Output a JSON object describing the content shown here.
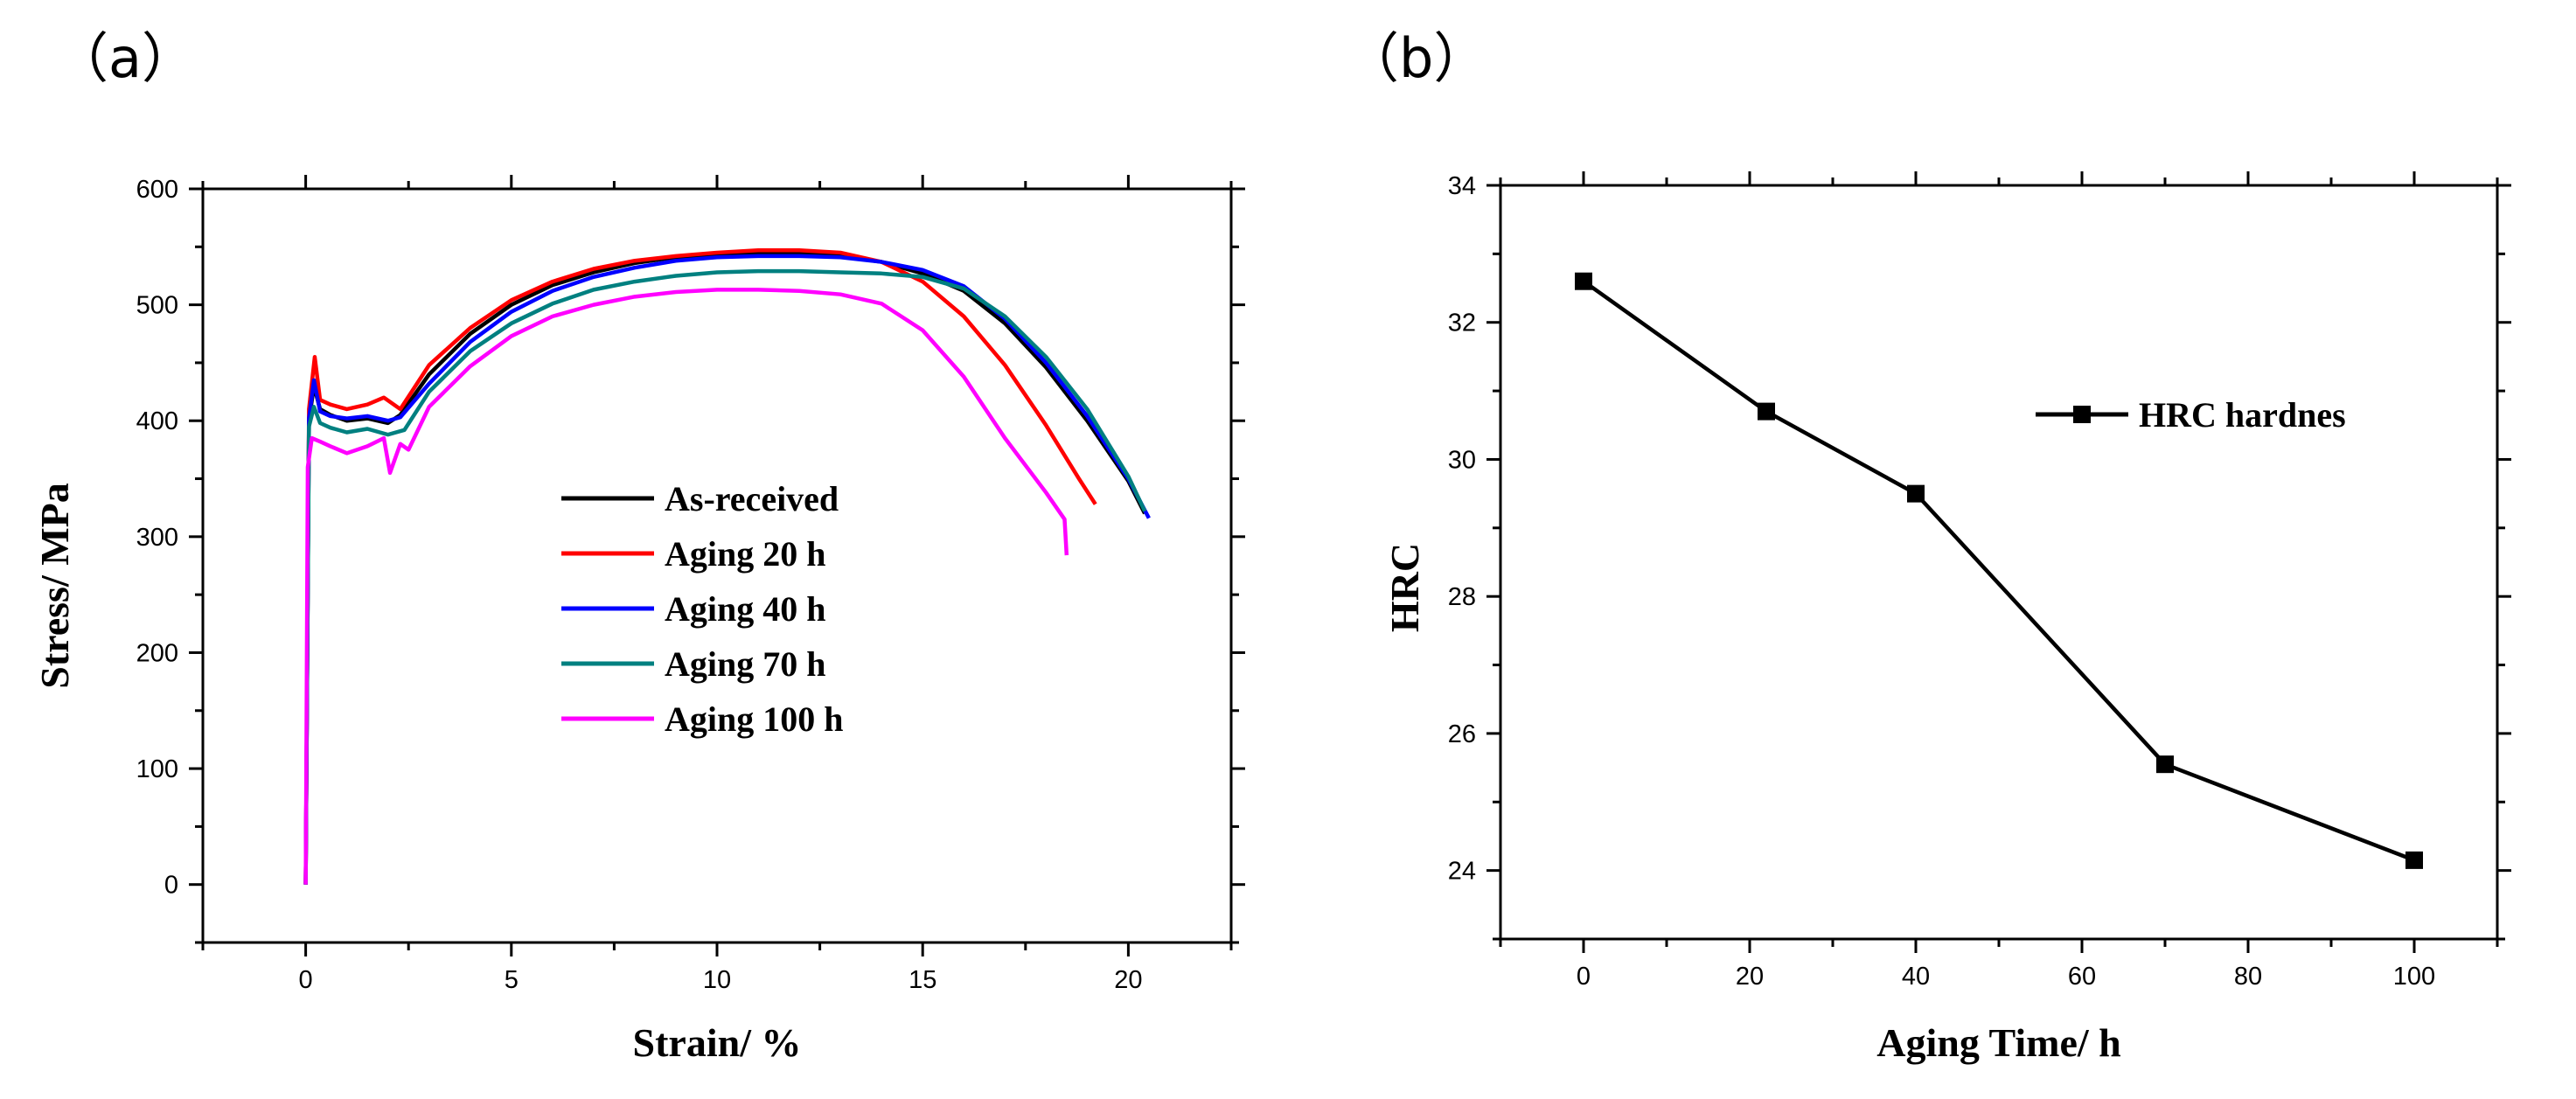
{
  "chart_data": [
    {
      "panel_label": "（a）",
      "type": "line",
      "xlabel": "Strain/ %",
      "ylabel": "Stress/ MPa",
      "xlim": [
        -2.5,
        22.5
      ],
      "ylim": [
        -50,
        600
      ],
      "xticks": [
        0,
        5,
        10,
        15,
        20
      ],
      "yticks": [
        0,
        100,
        200,
        300,
        400,
        500,
        600
      ],
      "legend": "center-right",
      "series": [
        {
          "name": "As-received",
          "color": "#000000",
          "x": [
            0,
            0.08,
            0.2,
            0.35,
            0.6,
            1.0,
            1.5,
            2.0,
            2.3,
            3,
            4,
            5,
            6,
            7,
            8,
            9,
            10,
            11,
            12,
            13,
            14,
            15,
            16,
            17,
            18,
            19,
            20,
            20.4
          ],
          "y": [
            0,
            400,
            430,
            410,
            405,
            400,
            402,
            398,
            405,
            440,
            475,
            500,
            517,
            528,
            536,
            541,
            543,
            544,
            544,
            542,
            537,
            527,
            512,
            484,
            446,
            400,
            348,
            320
          ]
        },
        {
          "name": "Aging 20 h",
          "color": "#ff0000",
          "x": [
            0,
            0.08,
            0.22,
            0.35,
            0.6,
            1.0,
            1.5,
            1.9,
            2.3,
            3,
            4,
            5,
            6,
            7,
            8,
            9,
            10,
            11,
            12,
            13,
            14,
            15,
            16,
            17,
            18,
            18.8,
            19.2
          ],
          "y": [
            0,
            410,
            455,
            418,
            414,
            410,
            414,
            420,
            410,
            448,
            480,
            504,
            520,
            531,
            538,
            542,
            545,
            547,
            547,
            545,
            537,
            520,
            490,
            448,
            396,
            350,
            328
          ]
        },
        {
          "name": "Aging 40 h",
          "color": "#0000ff",
          "x": [
            0,
            0.08,
            0.2,
            0.35,
            0.6,
            1.0,
            1.5,
            2.0,
            2.3,
            3,
            4,
            5,
            6,
            7,
            8,
            9,
            10,
            11,
            12,
            13,
            14,
            15,
            16,
            17,
            18,
            19,
            20,
            20.5
          ],
          "y": [
            0,
            402,
            435,
            408,
            404,
            402,
            404,
            400,
            403,
            432,
            468,
            494,
            512,
            524,
            532,
            538,
            541,
            542,
            542,
            541,
            537,
            530,
            516,
            488,
            450,
            404,
            350,
            316
          ]
        },
        {
          "name": "Aging 70 h",
          "color": "#008080",
          "x": [
            0,
            0.08,
            0.2,
            0.35,
            0.6,
            1.0,
            1.5,
            2.0,
            2.4,
            3,
            4,
            5,
            6,
            7,
            8,
            9,
            10,
            11,
            12,
            13,
            14,
            15,
            16,
            17,
            18,
            19,
            20,
            20.4
          ],
          "y": [
            0,
            395,
            412,
            398,
            394,
            390,
            393,
            388,
            392,
            425,
            460,
            484,
            501,
            513,
            520,
            525,
            528,
            529,
            529,
            528,
            527,
            524,
            514,
            490,
            455,
            410,
            352,
            322
          ]
        },
        {
          "name": "Aging 100 h",
          "color": "#ff00ff",
          "x": [
            0,
            0.05,
            0.15,
            0.35,
            0.6,
            1.0,
            1.5,
            1.9,
            2.05,
            2.3,
            2.5,
            3,
            4,
            5,
            6,
            7,
            8,
            9,
            10,
            11,
            12,
            13,
            14,
            15,
            16,
            17,
            18,
            18.45,
            18.5
          ],
          "y": [
            0,
            360,
            385,
            382,
            378,
            372,
            378,
            385,
            355,
            380,
            375,
            412,
            447,
            473,
            490,
            500,
            507,
            511,
            513,
            513,
            512,
            509,
            501,
            478,
            438,
            385,
            338,
            315,
            284
          ]
        }
      ]
    },
    {
      "panel_label": "（b）",
      "type": "line",
      "xlabel": "Aging Time/ h",
      "ylabel": "HRC",
      "xlim": [
        -10,
        110
      ],
      "ylim": [
        23,
        34
      ],
      "xticks": [
        0,
        20,
        40,
        60,
        80,
        100
      ],
      "yticks": [
        24,
        26,
        28,
        30,
        32,
        34
      ],
      "legend": "upper-right",
      "series": [
        {
          "name": "HRC hardnes",
          "color": "#000000",
          "marker": "square",
          "x": [
            0,
            22,
            40,
            70,
            100
          ],
          "y": [
            32.6,
            30.7,
            29.5,
            25.55,
            24.15
          ]
        }
      ]
    }
  ]
}
